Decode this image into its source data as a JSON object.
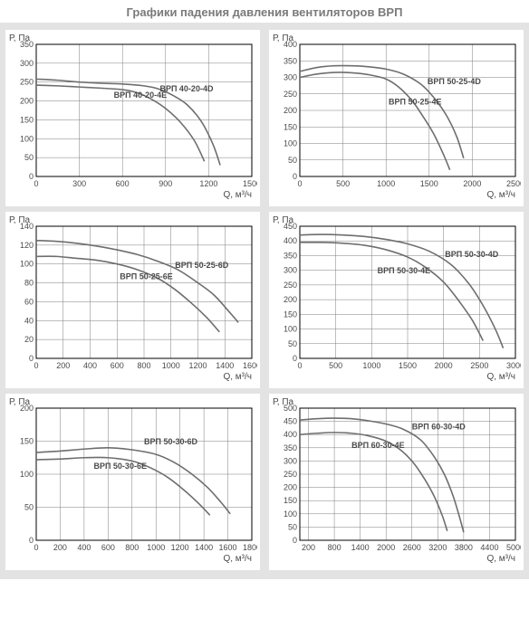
{
  "title": "Графики падения давления вентиляторов ВРП",
  "style": {
    "bg_band_color": "#e3e3e3",
    "chart_bg": "#ffffff",
    "grid_color": "#7d7d7d",
    "axis_color": "#000000",
    "curve_color": "#6e6e6e",
    "curve_width": 1.6,
    "label_color": "#4a4a4a",
    "tick_font_size": 9,
    "axis_label_font_size": 10,
    "series_label_font_size": 9,
    "series_label_weight": "bold"
  },
  "y_axis_label": "Р, Па",
  "x_axis_label": "Q, м³/ч",
  "charts": [
    {
      "id": "c1",
      "xlim": [
        0,
        1500
      ],
      "xtick_step": 300,
      "ylim": [
        0,
        350
      ],
      "ytick_step": 50,
      "series": [
        {
          "label": "ВРП 40-20-4D",
          "label_xy": [
            860,
            225
          ],
          "points": [
            [
              0,
              258
            ],
            [
              150,
              255
            ],
            [
              300,
              250
            ],
            [
              450,
              247
            ],
            [
              600,
              245
            ],
            [
              750,
              240
            ],
            [
              850,
              232
            ],
            [
              950,
              215
            ],
            [
              1050,
              190
            ],
            [
              1150,
              145
            ],
            [
              1230,
              85
            ],
            [
              1280,
              30
            ]
          ]
        },
        {
          "label": "ВРП 40-20-4E",
          "label_xy": [
            540,
            208
          ],
          "points": [
            [
              0,
              242
            ],
            [
              150,
              240
            ],
            [
              300,
              237
            ],
            [
              450,
              234
            ],
            [
              600,
              230
            ],
            [
              700,
              222
            ],
            [
              800,
              205
            ],
            [
              900,
              180
            ],
            [
              1000,
              145
            ],
            [
              1100,
              95
            ],
            [
              1170,
              40
            ]
          ]
        }
      ]
    },
    {
      "id": "c2",
      "xlim": [
        0,
        2500
      ],
      "xtick_step": 500,
      "ylim": [
        0,
        400
      ],
      "ytick_step": 50,
      "series": [
        {
          "label": "ВРП 50-25-4D",
          "label_xy": [
            1480,
            280
          ],
          "points": [
            [
              0,
              318
            ],
            [
              200,
              330
            ],
            [
              400,
              335
            ],
            [
              600,
              335
            ],
            [
              800,
              332
            ],
            [
              1000,
              325
            ],
            [
              1200,
              310
            ],
            [
              1400,
              280
            ],
            [
              1550,
              240
            ],
            [
              1700,
              185
            ],
            [
              1820,
              120
            ],
            [
              1900,
              55
            ]
          ]
        },
        {
          "label": "ВРП 50-25-4E",
          "label_xy": [
            1030,
            218
          ],
          "points": [
            [
              0,
              300
            ],
            [
              200,
              310
            ],
            [
              400,
              315
            ],
            [
              600,
              314
            ],
            [
              800,
              308
            ],
            [
              1000,
              295
            ],
            [
              1150,
              270
            ],
            [
              1300,
              230
            ],
            [
              1420,
              185
            ],
            [
              1550,
              130
            ],
            [
              1660,
              70
            ],
            [
              1740,
              20
            ]
          ]
        }
      ]
    },
    {
      "id": "c3",
      "xlim": [
        0,
        1600
      ],
      "xtick_step": 200,
      "ylim": [
        0,
        140
      ],
      "ytick_step": 20,
      "series": [
        {
          "label": "ВРП 50-25-6D",
          "label_xy": [
            1030,
            96
          ],
          "points": [
            [
              0,
              125
            ],
            [
              150,
              124
            ],
            [
              300,
              122
            ],
            [
              450,
              119
            ],
            [
              600,
              115
            ],
            [
              750,
              110
            ],
            [
              900,
              103
            ],
            [
              1050,
              94
            ],
            [
              1200,
              80
            ],
            [
              1320,
              67
            ],
            [
              1440,
              48
            ],
            [
              1500,
              38
            ]
          ]
        },
        {
          "label": "ВРП 50-25-6E",
          "label_xy": [
            620,
            84
          ],
          "points": [
            [
              0,
              108
            ],
            [
              150,
              108
            ],
            [
              300,
              106
            ],
            [
              450,
              104
            ],
            [
              600,
              100
            ],
            [
              750,
              94
            ],
            [
              900,
              85
            ],
            [
              1020,
              74
            ],
            [
              1140,
              60
            ],
            [
              1260,
              44
            ],
            [
              1360,
              28
            ]
          ]
        }
      ]
    },
    {
      "id": "c4",
      "xlim": [
        0,
        3000
      ],
      "xtick_step": 500,
      "ylim": [
        0,
        450
      ],
      "ytick_step": 50,
      "series": [
        {
          "label": "ВРП 50-30-4D",
          "label_xy": [
            2020,
            345
          ],
          "points": [
            [
              0,
              420
            ],
            [
              300,
              422
            ],
            [
              600,
              420
            ],
            [
              900,
              415
            ],
            [
              1200,
              405
            ],
            [
              1500,
              390
            ],
            [
              1800,
              365
            ],
            [
              2100,
              320
            ],
            [
              2350,
              255
            ],
            [
              2550,
              180
            ],
            [
              2720,
              100
            ],
            [
              2830,
              35
            ]
          ]
        },
        {
          "label": "ВРП 50-30-4E",
          "label_xy": [
            1080,
            290
          ],
          "points": [
            [
              0,
              395
            ],
            [
              300,
              395
            ],
            [
              600,
              392
            ],
            [
              900,
              385
            ],
            [
              1200,
              370
            ],
            [
              1500,
              345
            ],
            [
              1750,
              310
            ],
            [
              2000,
              260
            ],
            [
              2200,
              200
            ],
            [
              2400,
              130
            ],
            [
              2550,
              60
            ]
          ]
        }
      ]
    },
    {
      "id": "c5",
      "xlim": [
        0,
        1800
      ],
      "xtick_step": 200,
      "ylim": [
        0,
        200
      ],
      "ytick_step": 50,
      "series": [
        {
          "label": "ВРП 50-30-6D",
          "label_xy": [
            900,
            145
          ],
          "points": [
            [
              0,
              133
            ],
            [
              200,
              135
            ],
            [
              400,
              138
            ],
            [
              600,
              140
            ],
            [
              800,
              137
            ],
            [
              1000,
              130
            ],
            [
              1150,
              118
            ],
            [
              1300,
              100
            ],
            [
              1430,
              80
            ],
            [
              1540,
              58
            ],
            [
              1620,
              40
            ]
          ]
        },
        {
          "label": "ВРП 50-30-6E",
          "label_xy": [
            480,
            108
          ],
          "points": [
            [
              0,
              122
            ],
            [
              200,
              123
            ],
            [
              400,
              125
            ],
            [
              600,
              125
            ],
            [
              800,
              120
            ],
            [
              950,
              110
            ],
            [
              1100,
              95
            ],
            [
              1240,
              75
            ],
            [
              1360,
              55
            ],
            [
              1450,
              38
            ]
          ]
        }
      ]
    },
    {
      "id": "c6",
      "xlim": [
        0,
        5000
      ],
      "xtick_step": 600,
      "xtick_start": 200,
      "ylim": [
        0,
        500
      ],
      "ytick_step": 50,
      "series": [
        {
          "label": "ВРП 60-30-4D",
          "label_xy": [
            2600,
            420
          ],
          "points": [
            [
              0,
              455
            ],
            [
              400,
              460
            ],
            [
              800,
              462
            ],
            [
              1200,
              460
            ],
            [
              1600,
              452
            ],
            [
              2000,
              440
            ],
            [
              2400,
              420
            ],
            [
              2800,
              380
            ],
            [
              3100,
              320
            ],
            [
              3350,
              250
            ],
            [
              3550,
              170
            ],
            [
              3700,
              90
            ],
            [
              3800,
              30
            ]
          ]
        },
        {
          "label": "ВРП 60-30-4E",
          "label_xy": [
            1200,
            350
          ],
          "points": [
            [
              0,
              400
            ],
            [
              400,
              405
            ],
            [
              800,
              408
            ],
            [
              1200,
              405
            ],
            [
              1600,
              395
            ],
            [
              2000,
              375
            ],
            [
              2350,
              340
            ],
            [
              2650,
              290
            ],
            [
              2900,
              230
            ],
            [
              3120,
              165
            ],
            [
              3300,
              95
            ],
            [
              3420,
              35
            ]
          ]
        }
      ]
    }
  ]
}
